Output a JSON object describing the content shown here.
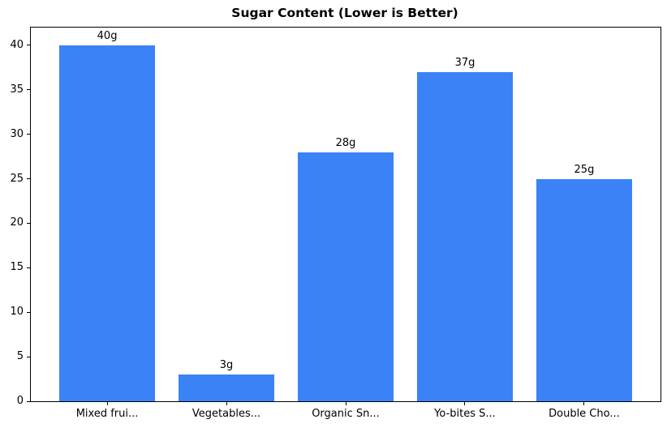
{
  "chart_data": {
    "type": "bar",
    "title": "Sugar Content (Lower is Better)",
    "categories": [
      "Mixed frui...",
      "Vegetables...",
      "Organic Sn...",
      "Yo-bites S...",
      "Double Cho..."
    ],
    "values": [
      40,
      3,
      28,
      37,
      25
    ],
    "bar_labels": [
      "40g",
      "3g",
      "28g",
      "37g",
      "25g"
    ],
    "xlabel": "",
    "ylabel": "",
    "ylim": [
      0,
      42
    ],
    "xlim": [
      -0.64,
      4.64
    ],
    "bar_width_units": 0.8,
    "yticks": [
      0,
      5,
      10,
      15,
      20,
      25,
      30,
      35,
      40
    ],
    "bar_color": "#3b82f6",
    "text_color": "#000000",
    "background_color": "#ffffff",
    "grid": false,
    "legend": null
  }
}
